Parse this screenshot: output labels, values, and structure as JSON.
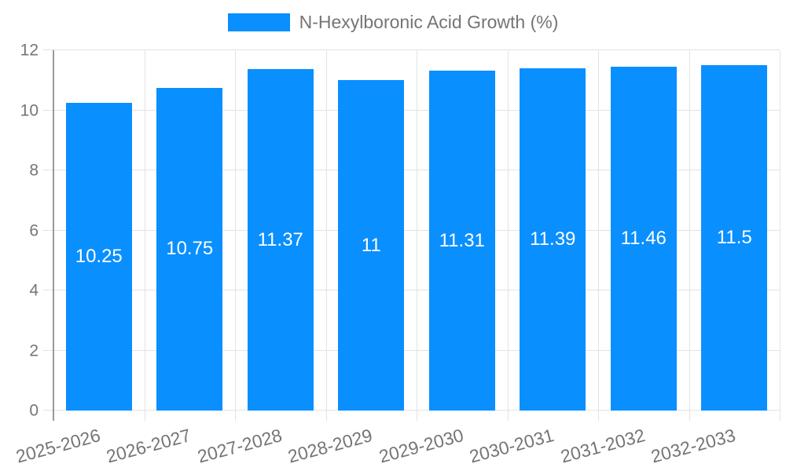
{
  "chart_data": {
    "type": "bar",
    "title": "",
    "legend": "N-Hexylboronic Acid Growth (%)",
    "legend_position": "top",
    "categories": [
      "2025-2026",
      "2026-2027",
      "2027-2028",
      "2028-2029",
      "2029-2030",
      "2030-2031",
      "2031-2032",
      "2032-2033"
    ],
    "values": [
      10.25,
      10.75,
      11.37,
      11,
      11.31,
      11.39,
      11.46,
      11.5
    ],
    "xlabel": "",
    "ylabel": "",
    "ylim": [
      0,
      12
    ],
    "yticks": [
      0,
      2,
      4,
      6,
      8,
      10,
      12
    ],
    "grid": true,
    "colors": {
      "bar": "#0a8fff",
      "gridline": "#e3e3e3",
      "axis_line": "#9a9a9a",
      "tick_text": "#757575",
      "value_text": "#ffffff",
      "background": "#ffffff"
    }
  }
}
